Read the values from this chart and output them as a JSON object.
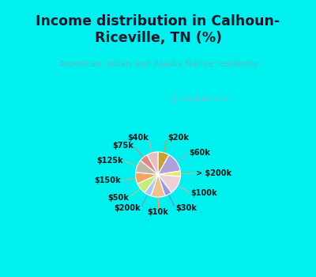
{
  "title": "Income distribution in Calhoun-\nRiceville, TN (%)",
  "subtitle": "American Indian and Alaska Native residents",
  "watermark": "ⓘ City-Data.com",
  "bg_cyan": "#00f0f0",
  "bg_chart": "#dff2e8",
  "title_color": "#1a1a2e",
  "subtitle_color": "#5ab8c0",
  "label_color": "#1a1a1a",
  "ordered_labels": [
    "$20k",
    "$60k",
    "> $200k",
    "$100k",
    "$30k",
    "$10k",
    "$200k",
    "$50k",
    "$150k",
    "$125k",
    "$75k",
    "$40k"
  ],
  "ordered_values": [
    8,
    14,
    4,
    13,
    5,
    10,
    5,
    8,
    8,
    9,
    6,
    8
  ],
  "ordered_colors": [
    "#c8a030",
    "#b0a0d8",
    "#e8e870",
    "#f0d0d8",
    "#9898dc",
    "#f0c090",
    "#a8c8f8",
    "#c8e880",
    "#f0a860",
    "#c0b8a8",
    "#e08888",
    "#e8c0c0"
  ],
  "line_colors": [
    "#c8a030",
    "#b0a0d8",
    "#c0c060",
    "#f0a0b0",
    "#8080c0",
    "#f0a070",
    "#8090c0",
    "#b0d070",
    "#f0a060",
    "#c0b890",
    "#e08080",
    "#e0a0a0"
  ]
}
